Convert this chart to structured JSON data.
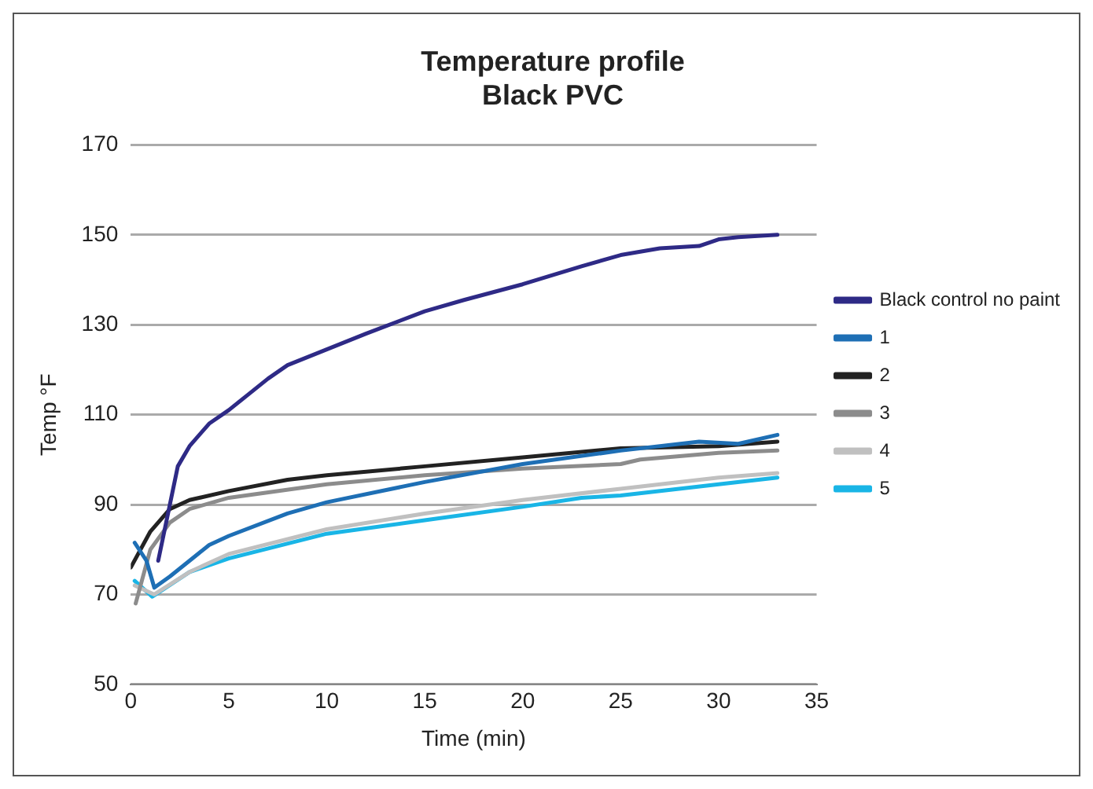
{
  "chart_data": {
    "type": "line",
    "title": "Temperature profile",
    "subtitle": "Black PVC",
    "xlabel": "Time (min)",
    "ylabel": "Temp °F",
    "xlim": [
      0,
      35
    ],
    "xticks": [
      0,
      5,
      10,
      15,
      20,
      25,
      30,
      35
    ],
    "ylim": [
      50,
      170
    ],
    "yticks": [
      50,
      70,
      90,
      110,
      130,
      150,
      170
    ],
    "grid": "y",
    "legend": "right",
    "marker": "none",
    "line_style": "solid",
    "series": [
      {
        "name": "Black control no paint",
        "color": "#2e2a86",
        "x": [
          1.4,
          2.4,
          3,
          4,
          5,
          6,
          7,
          8,
          10,
          12,
          15,
          17,
          20,
          23,
          25,
          27,
          29,
          30,
          31,
          33
        ],
        "values": [
          77.5,
          98.5,
          103,
          108,
          111,
          114.5,
          118,
          121,
          124.5,
          128,
          133,
          135.5,
          139,
          143,
          145.5,
          147,
          147.5,
          149,
          149.5,
          150
        ]
      },
      {
        "name": "1",
        "color": "#1e6fb5",
        "x": [
          0.2,
          0.8,
          1.2,
          2,
          3,
          4,
          5,
          8,
          10,
          15,
          20,
          25,
          29,
          31,
          33
        ],
        "values": [
          81.5,
          77.5,
          71.5,
          74,
          77.5,
          81,
          83,
          88,
          90.5,
          95,
          99,
          102,
          104,
          103.5,
          105.5
        ]
      },
      {
        "name": "2",
        "color": "#222222",
        "x": [
          0,
          1,
          2,
          3,
          5,
          8,
          10,
          15,
          20,
          25,
          30,
          33
        ],
        "values": [
          76,
          84,
          89,
          91,
          93,
          95.5,
          96.5,
          98.5,
          100.5,
          102.5,
          103,
          104
        ]
      },
      {
        "name": "3",
        "color": "#8c8c8c",
        "x": [
          0.25,
          1,
          2,
          3,
          5,
          10,
          15,
          20,
          25,
          26,
          30,
          33
        ],
        "values": [
          68,
          80,
          86,
          89,
          91.5,
          94.5,
          96.5,
          98,
          99,
          100,
          101.5,
          102
        ]
      },
      {
        "name": "4",
        "color": "#c0c0c0",
        "x": [
          0.2,
          1.2,
          3,
          5,
          10,
          15,
          20,
          25,
          30,
          33
        ],
        "values": [
          72,
          70,
          75,
          79,
          84.5,
          88,
          91,
          93.5,
          96,
          97
        ]
      },
      {
        "name": "5",
        "color": "#19b5e6",
        "x": [
          0.2,
          1.1,
          3,
          5,
          10,
          15,
          20,
          23,
          25,
          30,
          33
        ],
        "values": [
          73,
          69.5,
          75,
          78,
          83.5,
          86.5,
          89.5,
          91.5,
          92,
          94.5,
          96
        ]
      }
    ]
  }
}
